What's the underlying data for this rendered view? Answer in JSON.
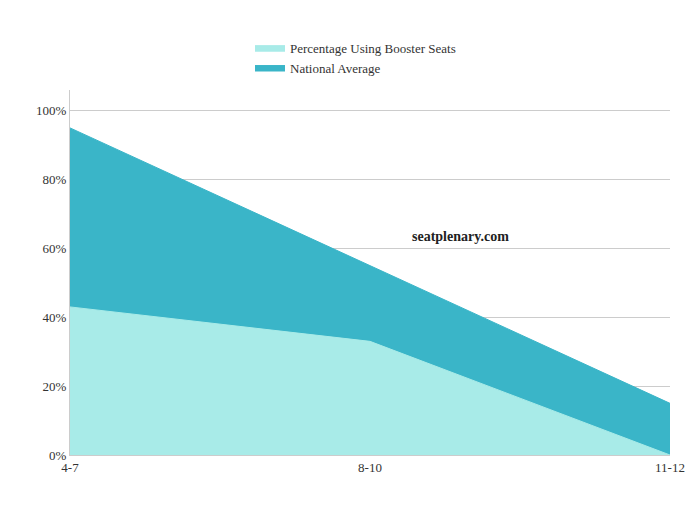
{
  "chart_data": {
    "type": "area",
    "categories": [
      "4-7",
      "8-10",
      "11-12"
    ],
    "series": [
      {
        "name": "National Average",
        "color": "#3ab5c8",
        "values": [
          95,
          55,
          15
        ]
      },
      {
        "name": "Percentage Using Booster Seats",
        "color": "#a8ebe8",
        "values": [
          43,
          33,
          0
        ]
      }
    ],
    "annotations": [
      "seatplenary.com"
    ],
    "ylim": [
      0,
      106
    ],
    "yticks": [
      {
        "value": 0,
        "label": "0%"
      },
      {
        "value": 20,
        "label": "20%"
      },
      {
        "value": 40,
        "label": "40%"
      },
      {
        "value": 60,
        "label": "60%"
      },
      {
        "value": 80,
        "label": "80%"
      },
      {
        "value": 100,
        "label": "100%"
      }
    ],
    "grid": true,
    "legend": "top"
  }
}
